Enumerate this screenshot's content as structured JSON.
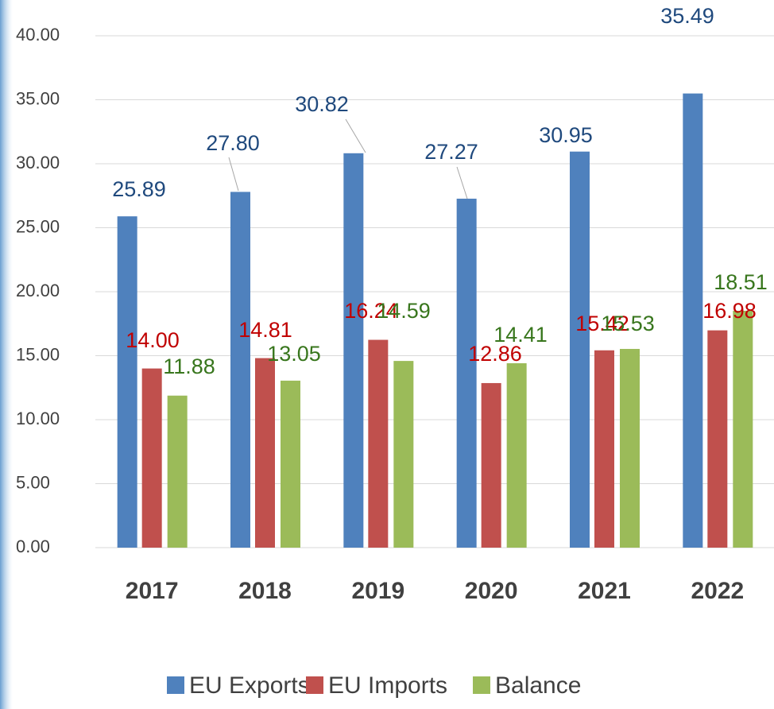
{
  "chart_data": {
    "type": "bar",
    "categories": [
      "2017",
      "2018",
      "2019",
      "2020",
      "2021",
      "2022"
    ],
    "series": [
      {
        "name": "EU Exports",
        "color": "#4f81bd",
        "label_color": "#1f497d",
        "values": [
          25.89,
          27.8,
          30.82,
          27.27,
          30.95,
          35.49
        ],
        "value_labels": [
          "25.89",
          "27.80",
          "30.82",
          "27.27",
          "30.95",
          "35.49"
        ]
      },
      {
        "name": "EU Imports",
        "color": "#c0504d",
        "label_color": "#c00000",
        "values": [
          14,
          14.81,
          16.24,
          12.86,
          15.42,
          16.98
        ],
        "value_labels": [
          "14.00",
          "14.81",
          "16.24",
          "12.86",
          "15.42",
          "16.98"
        ]
      },
      {
        "name": "Balance",
        "color": "#9bbb59",
        "label_color": "#38761d",
        "values": [
          11.88,
          13.05,
          14.59,
          14.41,
          15.53,
          18.51
        ],
        "value_labels": [
          "11.88",
          "13.05",
          "14.59",
          "14.41",
          "15.53",
          "18.51"
        ]
      }
    ],
    "ylim": [
      0,
      40
    ],
    "yticks": [
      {
        "value": 0,
        "label": "0.00"
      },
      {
        "value": 5,
        "label": "5.00"
      },
      {
        "value": 10,
        "label": "10.00"
      },
      {
        "value": 15,
        "label": "15.00"
      },
      {
        "value": 20,
        "label": "20.00"
      },
      {
        "value": 25,
        "label": "25.00"
      },
      {
        "value": 30,
        "label": "30.00"
      },
      {
        "value": 35,
        "label": "35.00"
      },
      {
        "value": 40,
        "label": "40.00"
      }
    ],
    "grid": true,
    "legend": "bottom"
  }
}
